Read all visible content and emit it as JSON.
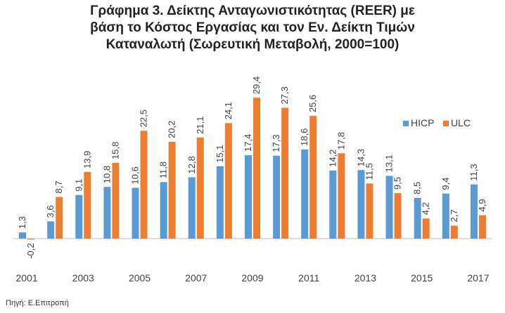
{
  "title_lines": [
    "Γράφημα 3. Δείκτης Ανταγωνιστικότητας (REER) με",
    "βάση το Κόστος Εργασίας και τον Εν. Δείκτη Τιμών",
    "Καταναλωτή (Σωρευτική Μεταβολή, 2000=100)"
  ],
  "source": "Πηγή: Ε.Επιτροπή",
  "colors": {
    "HICP": "#5b9bd5",
    "ULC": "#ed7d31"
  },
  "chart_data": {
    "type": "bar",
    "categories": [
      "2001",
      "2002",
      "2003",
      "2004",
      "2005",
      "2006",
      "2007",
      "2008",
      "2009",
      "2010",
      "2011",
      "2012",
      "2013",
      "2014",
      "2015",
      "2016",
      "2017"
    ],
    "tick_labels": [
      "2001",
      "2003",
      "2005",
      "2007",
      "2009",
      "2011",
      "2013",
      "2015",
      "2017"
    ],
    "series": [
      {
        "name": "HICP",
        "values": [
          1.3,
          3.6,
          9.1,
          10.8,
          10.6,
          11.8,
          12.8,
          15.1,
          17.4,
          17.3,
          18.6,
          14.2,
          14.3,
          13.1,
          8.5,
          9.4,
          11.3
        ],
        "labels": [
          "1,3",
          "3,6",
          "9,1",
          "10,8",
          "10,6",
          "11,8",
          "12,8",
          "15,1",
          "17,4",
          "17,3",
          "18,6",
          "14,2",
          "14,3",
          "13,1",
          "8,5",
          "9,4",
          "11,3"
        ]
      },
      {
        "name": "ULC",
        "values": [
          -0.2,
          8.7,
          13.9,
          15.8,
          22.5,
          20.2,
          21.1,
          24.1,
          29.4,
          27.3,
          25.6,
          17.8,
          11.5,
          9.5,
          4.2,
          2.7,
          4.9
        ],
        "labels": [
          "-0,2",
          "8,7",
          "13,9",
          "15,8",
          "22,5",
          "20,2",
          "21,1",
          "24,1",
          "29,4",
          "27,3",
          "25,6",
          "17,8",
          "11,5",
          "9,5",
          "4,2",
          "2,7",
          "4,9"
        ]
      }
    ],
    "legend_position": "right",
    "grid": false
  }
}
